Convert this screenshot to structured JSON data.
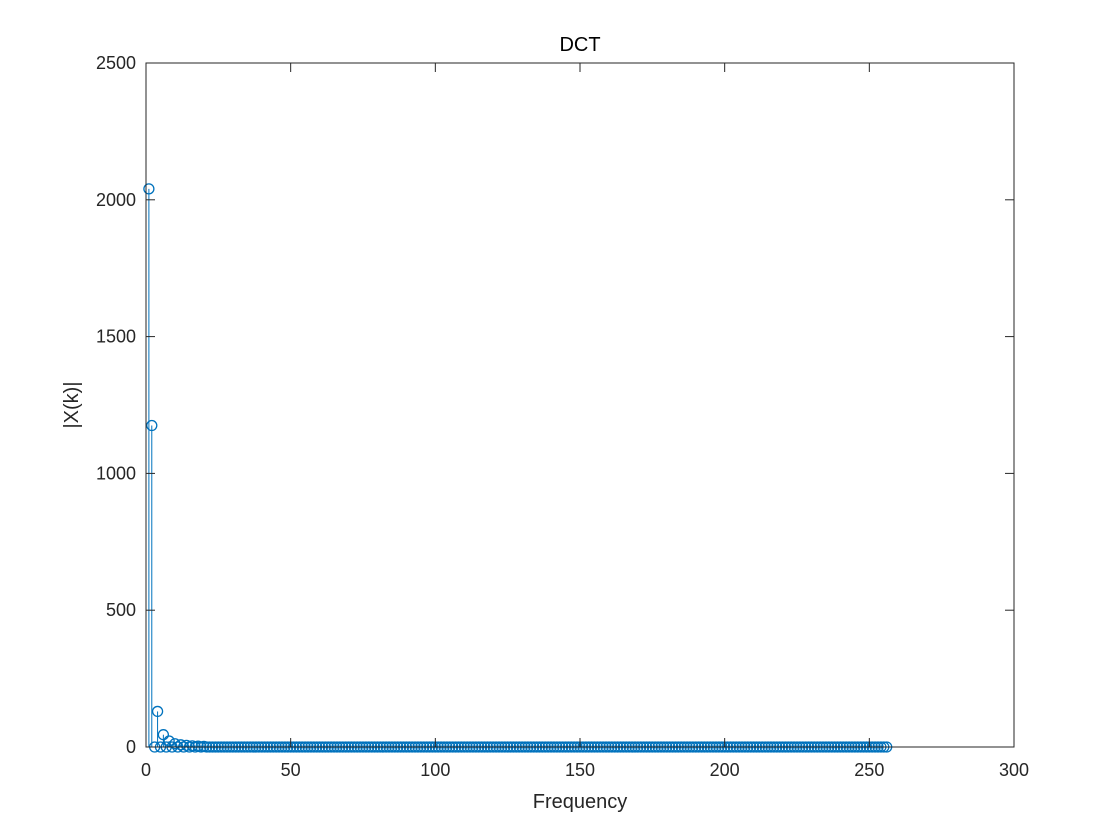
{
  "chart_data": {
    "type": "stem",
    "title": "DCT",
    "xlabel": "Frequency",
    "ylabel": "|X(k)|",
    "xlim": [
      0,
      300
    ],
    "ylim": [
      0,
      2500
    ],
    "xticks": [
      0,
      50,
      100,
      150,
      200,
      250,
      300
    ],
    "yticks": [
      0,
      500,
      1000,
      1500,
      2000,
      2500
    ],
    "grid": false,
    "box": true,
    "series": [
      {
        "color": "#0072BD",
        "marker": "circle-open",
        "x_start": 1,
        "x_end": 256,
        "points": [
          {
            "x": 1,
            "y": 2040
          },
          {
            "x": 2,
            "y": 1175
          },
          {
            "x": 3,
            "y": 0
          },
          {
            "x": 4,
            "y": 130
          },
          {
            "x": 5,
            "y": 0
          },
          {
            "x": 6,
            "y": 45
          },
          {
            "x": 7,
            "y": 0
          },
          {
            "x": 8,
            "y": 22
          },
          {
            "x": 9,
            "y": 0
          },
          {
            "x": 10,
            "y": 12
          },
          {
            "x": 11,
            "y": 0
          },
          {
            "x": 12,
            "y": 8
          },
          {
            "x": 13,
            "y": 0
          },
          {
            "x": 14,
            "y": 6
          },
          {
            "x": 15,
            "y": 0
          },
          {
            "x": 16,
            "y": 4
          },
          {
            "x": 17,
            "y": 0
          },
          {
            "x": 18,
            "y": 3
          },
          {
            "x": 19,
            "y": 0
          },
          {
            "x": 20,
            "y": 2
          }
        ],
        "default_y": 0
      }
    ]
  }
}
